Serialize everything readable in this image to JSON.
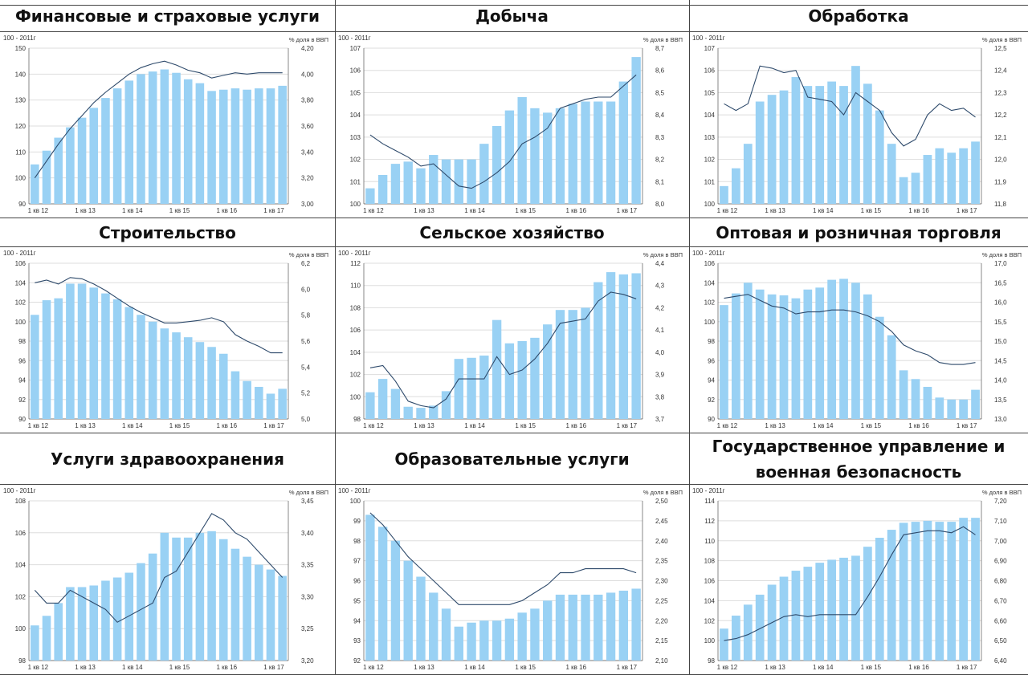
{
  "colors": {
    "bar": "#99d1f4",
    "line": "#2e4a6b",
    "grid": "#dddddd",
    "axis": "#555555",
    "text": "#333333"
  },
  "panels": [
    {
      "title": "Финансовые и страховые услуги",
      "left_unit": "100 - 2011г",
      "right_unit": "%  доля в ВВП",
      "x_labels": [
        "1 кв 12",
        "1 кв 13",
        "1 кв 14",
        "1 кв 15",
        "1 кв 16",
        "1 кв 17"
      ],
      "left_ticks": [
        "90",
        "100",
        "110",
        "120",
        "130",
        "140",
        "150"
      ],
      "right_ticks": [
        "3,00",
        "3,20",
        "3,40",
        "3,60",
        "3,80",
        "4,00",
        "4,20"
      ]
    },
    {
      "title": "Добыча",
      "left_unit": "100 - 2011г",
      "right_unit": "%  доля в ВВП",
      "x_labels": [
        "1 кв 12",
        "1 кв 13",
        "1 кв 14",
        "1 кв 15",
        "1 кв 16",
        "1 кв 17"
      ],
      "left_ticks": [
        "100",
        "101",
        "102",
        "103",
        "104",
        "105",
        "106",
        "107"
      ],
      "right_ticks": [
        "8,0",
        "8,1",
        "8,2",
        "8,3",
        "8,4",
        "8,5",
        "8,6",
        "8,7"
      ]
    },
    {
      "title": "Обработка",
      "left_unit": "100 - 2011г",
      "right_unit": "%  доля в ВВП",
      "x_labels": [
        "1 кв 12",
        "1 кв 13",
        "1 кв 14",
        "1 кв 15",
        "1 кв 16",
        "1 кв 17"
      ],
      "left_ticks": [
        "100",
        "101",
        "102",
        "103",
        "104",
        "105",
        "106",
        "107"
      ],
      "right_ticks": [
        "11,8",
        "11,9",
        "12,0",
        "12,1",
        "12,2",
        "12,3",
        "12,4",
        "12,5"
      ]
    },
    {
      "title": "Строительство",
      "left_unit": "100 - 2011г",
      "right_unit": "%  доля в ВВП",
      "x_labels": [
        "1 кв 12",
        "1 кв 13",
        "1 кв 14",
        "1 кв 15",
        "1 кв 16",
        "1 кв 17"
      ],
      "left_ticks": [
        "90",
        "92",
        "94",
        "96",
        "98",
        "100",
        "102",
        "104",
        "106"
      ],
      "right_ticks": [
        "5,0",
        "5,2",
        "5,4",
        "5,6",
        "5,8",
        "6,0",
        "6,2"
      ]
    },
    {
      "title": "Сельское хозяйство",
      "left_unit": "100 - 2011г",
      "right_unit": "%  доля в ВВП",
      "x_labels": [
        "1 кв 12",
        "1 кв 13",
        "1 кв 14",
        "1 кв 15",
        "1 кв 16",
        "1 кв 17"
      ],
      "left_ticks": [
        "98",
        "100",
        "102",
        "104",
        "106",
        "108",
        "110",
        "112"
      ],
      "right_ticks": [
        "3,7",
        "3,8",
        "3,9",
        "4,0",
        "4,1",
        "4,2",
        "4,3",
        "4,4"
      ]
    },
    {
      "title": "Оптовая и розничная торговля",
      "left_unit": "100 - 2011г",
      "right_unit": "%  доля в ВВП",
      "x_labels": [
        "1 кв 12",
        "1 кв 13",
        "1 кв 14",
        "1 кв 15",
        "1 кв 16",
        "1 кв 17"
      ],
      "left_ticks": [
        "90",
        "92",
        "94",
        "96",
        "98",
        "100",
        "102",
        "104",
        "106"
      ],
      "right_ticks": [
        "13,0",
        "13,5",
        "14,0",
        "14,5",
        "15,0",
        "15,5",
        "16,0",
        "16,5",
        "17,0"
      ]
    },
    {
      "title": "Услуги здравоохранения",
      "left_unit": "100 - 2011г",
      "right_unit": "%  доля в ВВП",
      "x_labels": [
        "1 кв 12",
        "1 кв 13",
        "1 кв 14",
        "1 кв 15",
        "1 кв 16",
        "1 кв 17"
      ],
      "left_ticks": [
        "98",
        "100",
        "102",
        "104",
        "106",
        "108"
      ],
      "right_ticks": [
        "3,20",
        "3,25",
        "3,30",
        "3,35",
        "3,40",
        "3,45"
      ]
    },
    {
      "title": "Образовательные услуги",
      "left_unit": "100 - 2011г",
      "right_unit": "%  доля в ВВП",
      "x_labels": [
        "1 кв 12",
        "1 кв 13",
        "1 кв 14",
        "1 кв 15",
        "1 кв 16",
        "1 кв 17"
      ],
      "left_ticks": [
        "92",
        "93",
        "94",
        "95",
        "96",
        "97",
        "98",
        "99",
        "100"
      ],
      "right_ticks": [
        "2,10",
        "2,15",
        "2,20",
        "2,25",
        "2,30",
        "2,35",
        "2,40",
        "2,45",
        "2,50"
      ]
    },
    {
      "title": "Государственное управление и\nвоенная безопасность",
      "left_unit": "100 - 2011г",
      "right_unit": "%  доля в ВВП",
      "x_labels": [
        "1 кв 12",
        "1 кв 13",
        "1 кв 14",
        "1 кв 15",
        "1 кв 16",
        "1 кв 17"
      ],
      "left_ticks": [
        "98",
        "100",
        "102",
        "104",
        "106",
        "108",
        "110",
        "112",
        "114"
      ],
      "right_ticks": [
        "6,40",
        "6,50",
        "6,60",
        "6,70",
        "6,80",
        "6,90",
        "7,00",
        "7,10",
        "7,20"
      ]
    }
  ],
  "chart_data": [
    {
      "type": "bar",
      "title": "Финансовые и страховые услуги",
      "ylim": [
        90,
        150
      ],
      "y2lim": [
        3.0,
        4.2
      ],
      "series": [
        {
          "axis": "left",
          "kind": "bar",
          "values": [
            105.2,
            110.5,
            115.5,
            119.5,
            123.2,
            127.0,
            130.8,
            134.5,
            137.5,
            140.0,
            141.0,
            141.8,
            140.5,
            138.0,
            136.5,
            133.5,
            134.0,
            134.5,
            134.0,
            134.5,
            134.5,
            135.5
          ]
        },
        {
          "axis": "right",
          "kind": "line",
          "values": [
            3.2,
            3.33,
            3.46,
            3.58,
            3.68,
            3.78,
            3.86,
            3.93,
            4.0,
            4.05,
            4.08,
            4.1,
            4.07,
            4.03,
            4.01,
            3.97,
            3.99,
            4.01,
            4.0,
            4.01,
            4.01,
            4.01
          ]
        }
      ]
    },
    {
      "type": "bar",
      "title": "Добыча",
      "ylim": [
        100,
        107
      ],
      "y2lim": [
        8.0,
        8.7
      ],
      "series": [
        {
          "axis": "left",
          "kind": "bar",
          "values": [
            100.7,
            101.3,
            101.8,
            101.9,
            101.6,
            102.2,
            102.0,
            102.0,
            102.0,
            102.7,
            103.5,
            104.2,
            104.8,
            104.3,
            104.1,
            104.3,
            104.5,
            104.6,
            104.6,
            104.6,
            105.5,
            106.6
          ]
        },
        {
          "axis": "right",
          "kind": "line",
          "values": [
            8.31,
            8.27,
            8.24,
            8.21,
            8.17,
            8.18,
            8.13,
            8.08,
            8.07,
            8.1,
            8.14,
            8.19,
            8.27,
            8.3,
            8.34,
            8.43,
            8.45,
            8.47,
            8.48,
            8.48,
            8.53,
            8.58
          ]
        }
      ]
    },
    {
      "type": "bar",
      "title": "Обработка",
      "ylim": [
        100,
        107
      ],
      "y2lim": [
        11.8,
        12.5
      ],
      "series": [
        {
          "axis": "left",
          "kind": "bar",
          "values": [
            100.8,
            101.6,
            102.7,
            104.6,
            104.9,
            105.1,
            105.7,
            105.3,
            105.3,
            105.5,
            105.3,
            106.2,
            105.4,
            104.2,
            102.7,
            101.2,
            101.4,
            102.2,
            102.5,
            102.3,
            102.5,
            102.8
          ]
        },
        {
          "axis": "right",
          "kind": "line",
          "values": [
            12.25,
            12.22,
            12.25,
            12.42,
            12.41,
            12.39,
            12.4,
            12.28,
            12.27,
            12.26,
            12.2,
            12.3,
            12.26,
            12.22,
            12.12,
            12.06,
            12.09,
            12.2,
            12.25,
            12.22,
            12.23,
            12.19
          ]
        }
      ]
    },
    {
      "type": "bar",
      "title": "Строительство",
      "ylim": [
        90,
        106
      ],
      "y2lim": [
        5.0,
        6.2
      ],
      "series": [
        {
          "axis": "left",
          "kind": "bar",
          "values": [
            100.7,
            102.2,
            102.4,
            103.9,
            103.9,
            103.5,
            102.9,
            102.3,
            101.5,
            100.7,
            100.0,
            99.3,
            98.9,
            98.4,
            97.9,
            97.4,
            96.7,
            94.9,
            93.9,
            93.3,
            92.6,
            93.1
          ]
        },
        {
          "axis": "right",
          "kind": "line",
          "values": [
            6.05,
            6.07,
            6.04,
            6.09,
            6.08,
            6.04,
            5.99,
            5.93,
            5.87,
            5.82,
            5.78,
            5.74,
            5.74,
            5.75,
            5.76,
            5.78,
            5.75,
            5.65,
            5.6,
            5.56,
            5.51,
            5.51
          ]
        }
      ]
    },
    {
      "type": "bar",
      "title": "Сельское хозяйство",
      "ylim": [
        98,
        112
      ],
      "y2lim": [
        3.7,
        4.4
      ],
      "series": [
        {
          "axis": "left",
          "kind": "bar",
          "values": [
            100.4,
            101.6,
            100.7,
            99.1,
            99.0,
            99.2,
            100.5,
            103.4,
            103.5,
            103.7,
            106.9,
            104.8,
            105.0,
            105.3,
            106.5,
            107.8,
            107.8,
            108.0,
            110.3,
            111.2,
            111.0,
            111.1
          ]
        },
        {
          "axis": "right",
          "kind": "line",
          "values": [
            3.93,
            3.94,
            3.87,
            3.78,
            3.76,
            3.75,
            3.79,
            3.88,
            3.88,
            3.88,
            3.98,
            3.9,
            3.92,
            3.97,
            4.04,
            4.13,
            4.14,
            4.15,
            4.23,
            4.27,
            4.26,
            4.24
          ]
        }
      ]
    },
    {
      "type": "bar",
      "title": "Оптовая и розничная торговля",
      "ylim": [
        90,
        106
      ],
      "y2lim": [
        13.0,
        17.0
      ],
      "series": [
        {
          "axis": "left",
          "kind": "bar",
          "values": [
            101.7,
            102.9,
            104.0,
            103.3,
            102.8,
            102.7,
            102.4,
            103.3,
            103.5,
            104.3,
            104.4,
            104.0,
            102.8,
            100.5,
            98.6,
            95.0,
            94.1,
            93.3,
            92.2,
            92.0,
            92.0,
            93.0
          ]
        },
        {
          "axis": "right",
          "kind": "line",
          "values": [
            16.1,
            16.15,
            16.2,
            16.05,
            15.9,
            15.85,
            15.7,
            15.75,
            15.75,
            15.8,
            15.8,
            15.75,
            15.65,
            15.5,
            15.25,
            14.9,
            14.75,
            14.65,
            14.45,
            14.4,
            14.4,
            14.45
          ]
        }
      ]
    },
    {
      "type": "bar",
      "title": "Услуги здравоохранения",
      "ylim": [
        98,
        108
      ],
      "y2lim": [
        3.2,
        3.45
      ],
      "series": [
        {
          "axis": "left",
          "kind": "bar",
          "values": [
            100.2,
            100.8,
            101.6,
            102.6,
            102.6,
            102.7,
            103.0,
            103.2,
            103.5,
            104.1,
            104.7,
            106.0,
            105.7,
            105.7,
            106.0,
            106.1,
            105.6,
            105.0,
            104.5,
            104.0,
            103.7,
            103.3
          ]
        },
        {
          "axis": "right",
          "kind": "line",
          "values": [
            3.31,
            3.29,
            3.29,
            3.31,
            3.3,
            3.29,
            3.28,
            3.26,
            3.27,
            3.28,
            3.29,
            3.33,
            3.34,
            3.37,
            3.4,
            3.43,
            3.42,
            3.4,
            3.39,
            3.37,
            3.35,
            3.33
          ]
        }
      ]
    },
    {
      "type": "bar",
      "title": "Образовательные услуги",
      "ylim": [
        92,
        100
      ],
      "y2lim": [
        2.1,
        2.5
      ],
      "series": [
        {
          "axis": "left",
          "kind": "bar",
          "values": [
            99.3,
            98.7,
            98.0,
            97.0,
            96.2,
            95.4,
            94.6,
            93.7,
            93.9,
            94.0,
            94.0,
            94.1,
            94.4,
            94.6,
            95.0,
            95.3,
            95.3,
            95.3,
            95.3,
            95.4,
            95.5,
            95.6
          ]
        },
        {
          "axis": "right",
          "kind": "line",
          "values": [
            2.47,
            2.44,
            2.4,
            2.36,
            2.33,
            2.3,
            2.27,
            2.24,
            2.24,
            2.24,
            2.24,
            2.24,
            2.25,
            2.27,
            2.29,
            2.32,
            2.32,
            2.33,
            2.33,
            2.33,
            2.33,
            2.32
          ]
        }
      ]
    },
    {
      "type": "bar",
      "title": "Государственное управление и военная безопасность",
      "ylim": [
        98,
        114
      ],
      "y2lim": [
        6.4,
        7.2
      ],
      "series": [
        {
          "axis": "left",
          "kind": "bar",
          "values": [
            101.2,
            102.5,
            103.6,
            104.6,
            105.6,
            106.4,
            107.0,
            107.4,
            107.8,
            108.1,
            108.3,
            108.5,
            109.4,
            110.3,
            111.1,
            111.8,
            111.9,
            112.0,
            111.9,
            111.9,
            112.3,
            112.3
          ]
        },
        {
          "axis": "right",
          "kind": "line",
          "values": [
            6.5,
            6.51,
            6.53,
            6.56,
            6.59,
            6.62,
            6.63,
            6.62,
            6.63,
            6.63,
            6.63,
            6.63,
            6.72,
            6.82,
            6.93,
            7.03,
            7.04,
            7.05,
            7.05,
            7.04,
            7.07,
            7.03
          ]
        }
      ]
    }
  ]
}
